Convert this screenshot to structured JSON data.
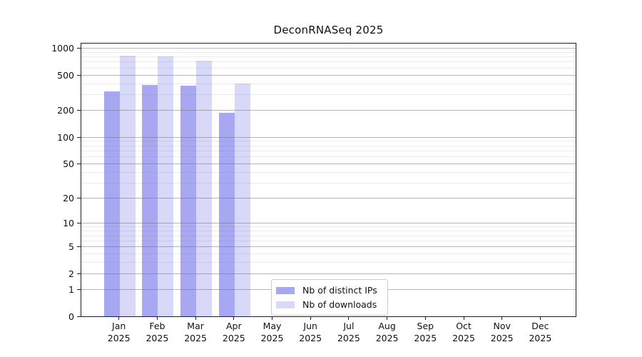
{
  "title": "DeconRNASeq 2025",
  "colors": {
    "distinct_ips": "#a8a8f2",
    "downloads": "#d8d8f8",
    "grid_major": "rgba(110,110,110,0.50)",
    "grid_minor": "rgba(110,110,110,0.14)",
    "spine": "#1f1f1f",
    "background": "#ffffff",
    "legend_border": "#cccccc"
  },
  "legend": {
    "items": [
      {
        "label": "Nb of distinct IPs",
        "color": "#a8a8f2"
      },
      {
        "label": "Nb of downloads",
        "color": "#d8d8f8"
      }
    ]
  },
  "chart_data": {
    "type": "bar",
    "title": "DeconRNASeq 2025",
    "categories": [
      "Jan 2025",
      "Feb 2025",
      "Mar 2025",
      "Apr 2025",
      "May 2025",
      "Jun 2025",
      "Jul 2025",
      "Aug 2025",
      "Sep 2025",
      "Oct 2025",
      "Nov 2025",
      "Dec 2025"
    ],
    "month_labels": [
      "Jan",
      "Feb",
      "Mar",
      "Apr",
      "May",
      "Jun",
      "Jul",
      "Aug",
      "Sep",
      "Oct",
      "Nov",
      "Dec"
    ],
    "year_label": "2025",
    "series": [
      {
        "name": "Nb of distinct IPs",
        "color": "#a8a8f2",
        "values": [
          330,
          385,
          380,
          190,
          null,
          null,
          null,
          null,
          null,
          null,
          null,
          null
        ]
      },
      {
        "name": "Nb of downloads",
        "color": "#d8d8f8",
        "values": [
          820,
          810,
          725,
          400,
          null,
          null,
          null,
          null,
          null,
          null,
          null,
          null
        ]
      }
    ],
    "yscale": "log10(value+1)",
    "ylim": [
      0,
      1000
    ],
    "yticks": [
      0,
      1,
      2,
      5,
      10,
      20,
      50,
      100,
      200,
      500,
      1000
    ],
    "minor_gridlines": [
      3,
      4,
      6,
      7,
      8,
      9,
      30,
      40,
      60,
      70,
      80,
      90,
      300,
      400,
      600,
      700,
      800,
      900
    ],
    "grid": true,
    "legend_position": "lower-center-left",
    "xlabel": "",
    "ylabel": ""
  }
}
